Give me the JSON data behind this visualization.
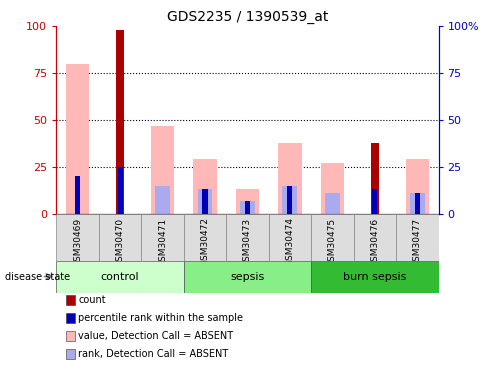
{
  "title": "GDS2235 / 1390539_at",
  "samples": [
    "GSM30469",
    "GSM30470",
    "GSM30471",
    "GSM30472",
    "GSM30473",
    "GSM30474",
    "GSM30475",
    "GSM30476",
    "GSM30477"
  ],
  "count_values": [
    0,
    98,
    0,
    0,
    0,
    0,
    0,
    38,
    0
  ],
  "percentile_rank": [
    20,
    25,
    0,
    13,
    7,
    15,
    0,
    13,
    11
  ],
  "value_absent": [
    80,
    0,
    47,
    29,
    13,
    38,
    27,
    0,
    29
  ],
  "rank_absent": [
    0,
    0,
    15,
    13,
    7,
    15,
    11,
    0,
    11
  ],
  "groups": [
    {
      "label": "control",
      "indices": [
        0,
        1,
        2
      ],
      "color": "#ccffcc"
    },
    {
      "label": "sepsis",
      "indices": [
        3,
        4,
        5
      ],
      "color": "#88ee88"
    },
    {
      "label": "burn sepsis",
      "indices": [
        6,
        7,
        8
      ],
      "color": "#33bb33"
    }
  ],
  "ylim": [
    0,
    100
  ],
  "yticks": [
    0,
    25,
    50,
    75,
    100
  ],
  "color_count": "#aa0000",
  "color_percentile": "#0000bb",
  "color_value_absent": "#ffb8b8",
  "color_rank_absent": "#aaaaee",
  "left_axis_color": "#cc0000",
  "right_axis_color": "#0000cc",
  "legend_items": [
    {
      "color": "#aa0000",
      "label": "count"
    },
    {
      "color": "#0000bb",
      "label": "percentile rank within the sample"
    },
    {
      "color": "#ffb8b8",
      "label": "value, Detection Call = ABSENT"
    },
    {
      "color": "#aaaaee",
      "label": "rank, Detection Call = ABSENT"
    }
  ]
}
